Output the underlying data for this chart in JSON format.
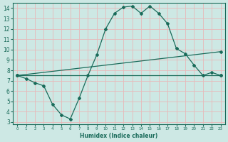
{
  "xlabel": "Humidex (Indice chaleur)",
  "bg_color": "#cde8e4",
  "grid_color": "#e8b8b8",
  "line_color": "#1a6b5a",
  "xlim": [
    -0.5,
    23.5
  ],
  "ylim": [
    2.8,
    14.5
  ],
  "xticks": [
    0,
    1,
    2,
    3,
    4,
    5,
    6,
    7,
    8,
    9,
    10,
    11,
    12,
    13,
    14,
    15,
    16,
    17,
    18,
    19,
    20,
    21,
    22,
    23
  ],
  "yticks": [
    3,
    4,
    5,
    6,
    7,
    8,
    9,
    10,
    11,
    12,
    13,
    14
  ],
  "line1_x": [
    0,
    1,
    2,
    3,
    4,
    5,
    6,
    7,
    8,
    9,
    10,
    11,
    12,
    13,
    14,
    15,
    16,
    17,
    18,
    19,
    20,
    21,
    22,
    23
  ],
  "line1_y": [
    7.5,
    7.2,
    6.8,
    6.5,
    4.7,
    3.7,
    3.3,
    5.3,
    7.5,
    9.5,
    12.0,
    13.5,
    14.1,
    14.2,
    13.5,
    14.2,
    13.5,
    12.5,
    10.1,
    9.6,
    8.5,
    7.5,
    7.8,
    7.5
  ],
  "line2_x": [
    0,
    23
  ],
  "line2_y": [
    7.5,
    7.5
  ],
  "line3_x": [
    0,
    23
  ],
  "line3_y": [
    7.5,
    9.8
  ],
  "xlabel_fontsize": 5.5,
  "tick_fontsize_x": 4.0,
  "tick_fontsize_y": 5.5
}
